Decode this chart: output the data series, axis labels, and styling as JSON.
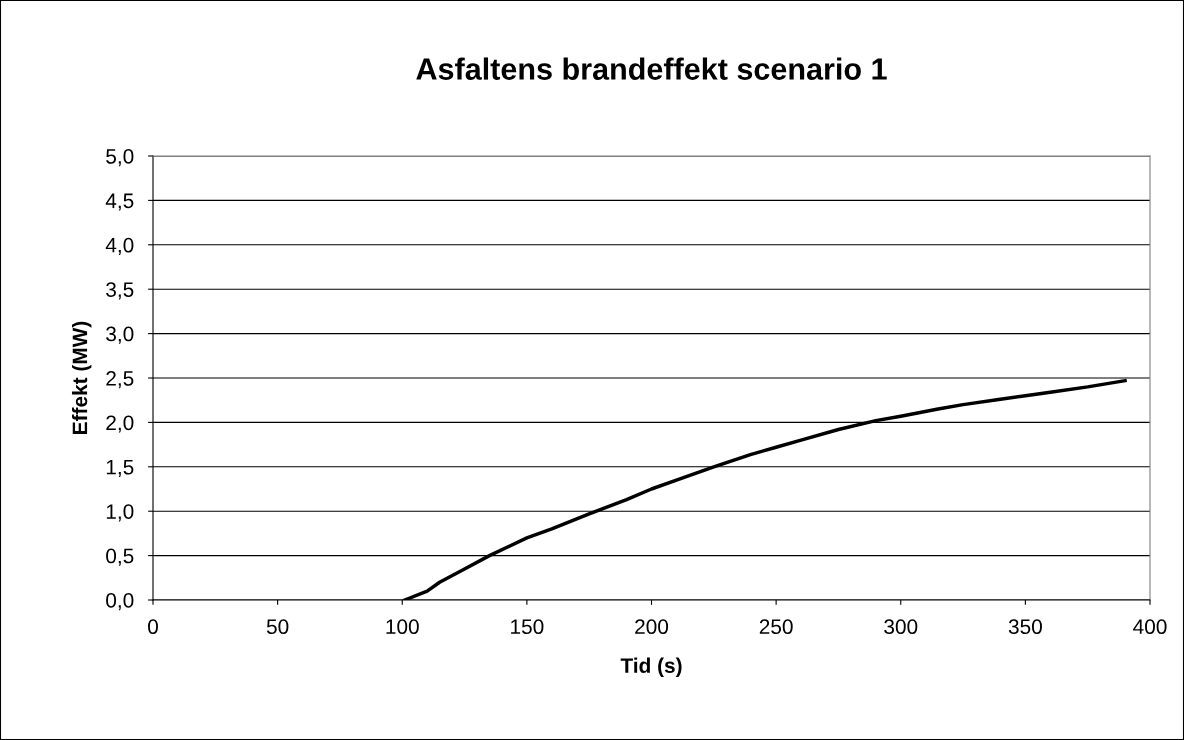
{
  "chart_data": {
    "type": "line",
    "title": "Asfaltens brandeffekt scenario 1",
    "xlabel": "Tid (s)",
    "ylabel": "Effekt (MW)",
    "x": [
      101,
      110,
      115,
      125,
      135,
      150,
      160,
      175,
      190,
      200,
      210,
      225,
      240,
      250,
      260,
      275,
      290,
      300,
      315,
      325,
      340,
      350,
      360,
      375,
      390
    ],
    "series": [
      {
        "color": "#000000",
        "values": [
          0,
          0.1,
          0.2,
          0.35,
          0.5,
          0.7,
          0.8,
          0.97,
          1.13,
          1.25,
          1.35,
          1.5,
          1.64,
          1.72,
          1.8,
          1.92,
          2.02,
          2.07,
          2.15,
          2.2,
          2.26,
          2.3,
          2.34,
          2.4,
          2.47
        ]
      }
    ],
    "xlim": [
      0,
      400
    ],
    "xticks": [
      0,
      50,
      100,
      150,
      200,
      250,
      300,
      350,
      400
    ],
    "ylim": [
      0,
      5
    ],
    "yticks": [
      {
        "value": 0,
        "label": "0,0"
      },
      {
        "value": 0.5,
        "label": "0,5"
      },
      {
        "value": 1,
        "label": "1,0"
      },
      {
        "value": 1.5,
        "label": "1,5"
      },
      {
        "value": 2,
        "label": "2,0"
      },
      {
        "value": 2.5,
        "label": "2,5"
      },
      {
        "value": 3,
        "label": "3,0"
      },
      {
        "value": 3.5,
        "label": "3,5"
      },
      {
        "value": 4,
        "label": "4,0"
      },
      {
        "value": 4.5,
        "label": "4,5"
      },
      {
        "value": 5,
        "label": "5,0"
      }
    ],
    "grid": "y",
    "legend": false,
    "marker": "none",
    "line_style": "solid"
  }
}
